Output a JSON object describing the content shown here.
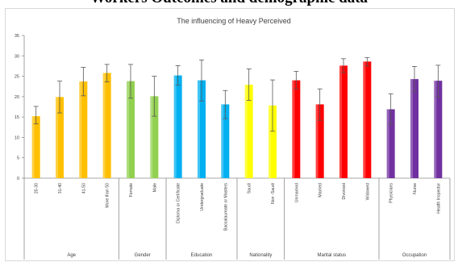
{
  "page_heading": "Workers Outcomes and demographic data",
  "chart_data": {
    "type": "bar",
    "title": "The influencing of Heavy Perceived",
    "ylim": [
      0,
      35
    ],
    "yticks": [
      0,
      5,
      10,
      15,
      20,
      25,
      30,
      35
    ],
    "grid": false,
    "legend": "none",
    "categories": [
      "20-30",
      "31-40",
      "41-50",
      "More than 50",
      "Female",
      "Male",
      "Diploma or Certificate",
      "Undergraduate",
      "Baccalaureate or Masters",
      "Saudi",
      "Non -Saudi",
      "Unmarried",
      "Married",
      "Divorced",
      "Widowed",
      "Physicians",
      "Nurse",
      "Health Inspector"
    ],
    "values": [
      15.2,
      19.9,
      23.7,
      25.8,
      23.8,
      20.1,
      25.2,
      24.0,
      18.1,
      22.9,
      17.8,
      24.0,
      18.1,
      27.6,
      28.6,
      16.9,
      24.3,
      23.9
    ],
    "error_low": [
      13.3,
      16.0,
      20.2,
      23.6,
      19.6,
      15.2,
      22.8,
      18.9,
      14.6,
      19.1,
      11.5,
      21.9,
      14.2,
      25.9,
      27.5,
      13.1,
      21.2,
      19.9
    ],
    "error_high": [
      17.6,
      23.8,
      27.2,
      27.9,
      27.9,
      25.0,
      27.6,
      29.0,
      21.5,
      26.8,
      24.1,
      26.2,
      21.9,
      29.3,
      29.6,
      20.7,
      27.4,
      27.7
    ],
    "groups": [
      {
        "name": "Age",
        "count": 4,
        "color": "#FFC000"
      },
      {
        "name": "Gender",
        "count": 2,
        "color": "#92D050"
      },
      {
        "name": "Education",
        "count": 3,
        "color": "#00B0F0"
      },
      {
        "name": "Nationality",
        "count": 2,
        "color": "#FFFF00"
      },
      {
        "name": "Marital status",
        "count": 4,
        "color": "#FF0000"
      },
      {
        "name": "Occupation",
        "count": 3,
        "color": "#7030A0"
      }
    ]
  }
}
